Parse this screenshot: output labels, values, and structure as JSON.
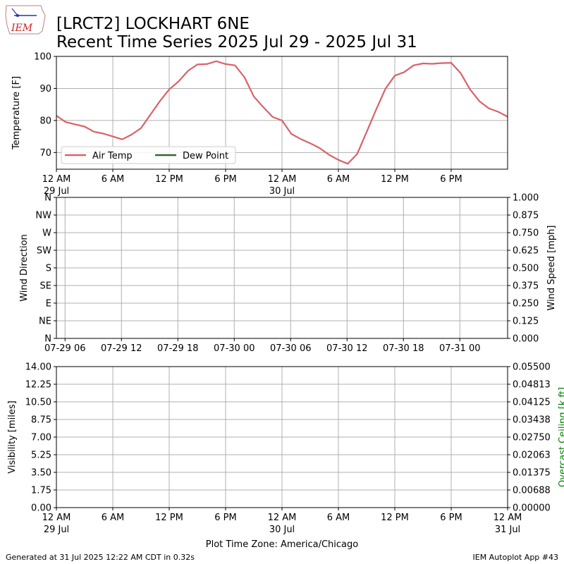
{
  "header": {
    "logo_text": "IEM",
    "title_line1": "[LRCT2] LOCKHART 6NE",
    "title_line2": "Recent Time Series 2025 Jul 29 - 2025 Jul 31"
  },
  "footer": {
    "generated": "Generated at 31 Jul 2025 12:22 AM CDT in 0.32s",
    "app": "IEM Autoplot App #43",
    "timezone_label": "Plot Time Zone: America/Chicago"
  },
  "colors": {
    "air_temp": "#d9626a",
    "dew_point": "#2e6b2e",
    "ceiling_label": "#008000",
    "grid": "#b0b0b0"
  },
  "chart_data": [
    {
      "type": "line",
      "ylabel": "Temperature [F]",
      "ylim": [
        64.8,
        100
      ],
      "yticks": [
        70,
        80,
        90,
        100
      ],
      "xlim": [
        0,
        48
      ],
      "xticks": [
        {
          "x": 0,
          "label": "12 AM",
          "sub": "29 Jul"
        },
        {
          "x": 6,
          "label": "6 AM",
          "sub": ""
        },
        {
          "x": 12,
          "label": "12 PM",
          "sub": ""
        },
        {
          "x": 18,
          "label": "6 PM",
          "sub": ""
        },
        {
          "x": 24,
          "label": "12 AM",
          "sub": "30 Jul"
        },
        {
          "x": 30,
          "label": "6 AM",
          "sub": ""
        },
        {
          "x": 36,
          "label": "12 PM",
          "sub": ""
        },
        {
          "x": 42,
          "label": "6 PM",
          "sub": ""
        }
      ],
      "grid": true,
      "legend": "lower-left",
      "series": [
        {
          "name": "Air Temp",
          "x": [
            0,
            1,
            2,
            3,
            4,
            5,
            6,
            7,
            8,
            9,
            10,
            11,
            12,
            13,
            14,
            15,
            16,
            17,
            18,
            19,
            20,
            21,
            22,
            23,
            24,
            25,
            26,
            27,
            28,
            29,
            30,
            31,
            32,
            33,
            34,
            35,
            36,
            37,
            38,
            39,
            40,
            41,
            42,
            43,
            44,
            45,
            46,
            47,
            48
          ],
          "values": [
            81.5,
            79.5,
            78.8,
            78.1,
            76.5,
            75.9,
            75,
            74.1,
            75.6,
            77.6,
            81.8,
            86,
            89.7,
            92.2,
            95.5,
            97.5,
            97.6,
            98.5,
            97.6,
            97.2,
            93.5,
            87.5,
            84.2,
            81.1,
            80,
            75.8,
            74.2,
            72.9,
            71.4,
            69.3,
            67.7,
            66.5,
            69.6,
            76.4,
            83.3,
            89.9,
            94,
            95.1,
            97.2,
            97.8,
            97.7,
            97.9,
            98,
            94.8,
            89.7,
            86,
            83.8,
            82.7,
            81.2
          ]
        },
        {
          "name": "Dew Point",
          "x": [],
          "values": []
        }
      ]
    },
    {
      "type": "line",
      "ylabel": "Wind Direction",
      "y2label": "Wind Speed [mph]",
      "ylim": [
        0,
        360
      ],
      "yticks": [
        {
          "value": 0,
          "label": "N"
        },
        {
          "value": 45,
          "label": "NE"
        },
        {
          "value": 90,
          "label": "E"
        },
        {
          "value": 135,
          "label": "SE"
        },
        {
          "value": 180,
          "label": "S"
        },
        {
          "value": 225,
          "label": "SW"
        },
        {
          "value": 270,
          "label": "W"
        },
        {
          "value": 315,
          "label": "NW"
        },
        {
          "value": 360,
          "label": "N"
        }
      ],
      "y2lim": [
        0,
        1
      ],
      "y2ticks": [
        "0.000",
        "0.125",
        "0.250",
        "0.375",
        "0.500",
        "0.625",
        "0.750",
        "0.875",
        "1.000"
      ],
      "xlim": [
        5.08,
        53.08
      ],
      "xticks": [
        {
          "x": 6,
          "label": "07-29 06"
        },
        {
          "x": 12,
          "label": "07-29 12"
        },
        {
          "x": 18,
          "label": "07-29 18"
        },
        {
          "x": 24,
          "label": "07-30 00"
        },
        {
          "x": 30,
          "label": "07-30 06"
        },
        {
          "x": 36,
          "label": "07-30 12"
        },
        {
          "x": 42,
          "label": "07-30 18"
        },
        {
          "x": 48,
          "label": "07-31 00"
        }
      ],
      "grid": true,
      "series": []
    },
    {
      "type": "line",
      "ylabel": "Visibility [miles]",
      "y2label": "Overcast Ceiling [k ft]",
      "ylim": [
        0,
        14
      ],
      "yticks": [
        "0.00",
        "1.75",
        "3.50",
        "5.25",
        "7.00",
        "8.75",
        "10.50",
        "12.25",
        "14.00"
      ],
      "y2lim": [
        0,
        0.055
      ],
      "y2ticks": [
        "0.00000",
        "0.00688",
        "0.01375",
        "0.02063",
        "0.02750",
        "0.03438",
        "0.04125",
        "0.04813",
        "0.05500"
      ],
      "xlim": [
        0,
        48
      ],
      "xticks": [
        {
          "x": 0,
          "label": "12 AM",
          "sub": "29 Jul"
        },
        {
          "x": 6,
          "label": "6 AM",
          "sub": ""
        },
        {
          "x": 12,
          "label": "12 PM",
          "sub": ""
        },
        {
          "x": 18,
          "label": "6 PM",
          "sub": ""
        },
        {
          "x": 24,
          "label": "12 AM",
          "sub": "30 Jul"
        },
        {
          "x": 30,
          "label": "6 AM",
          "sub": ""
        },
        {
          "x": 36,
          "label": "12 PM",
          "sub": ""
        },
        {
          "x": 42,
          "label": "6 PM",
          "sub": ""
        },
        {
          "x": 48,
          "label": "12 AM",
          "sub": "31 Jul"
        }
      ],
      "grid": true,
      "series": []
    }
  ]
}
